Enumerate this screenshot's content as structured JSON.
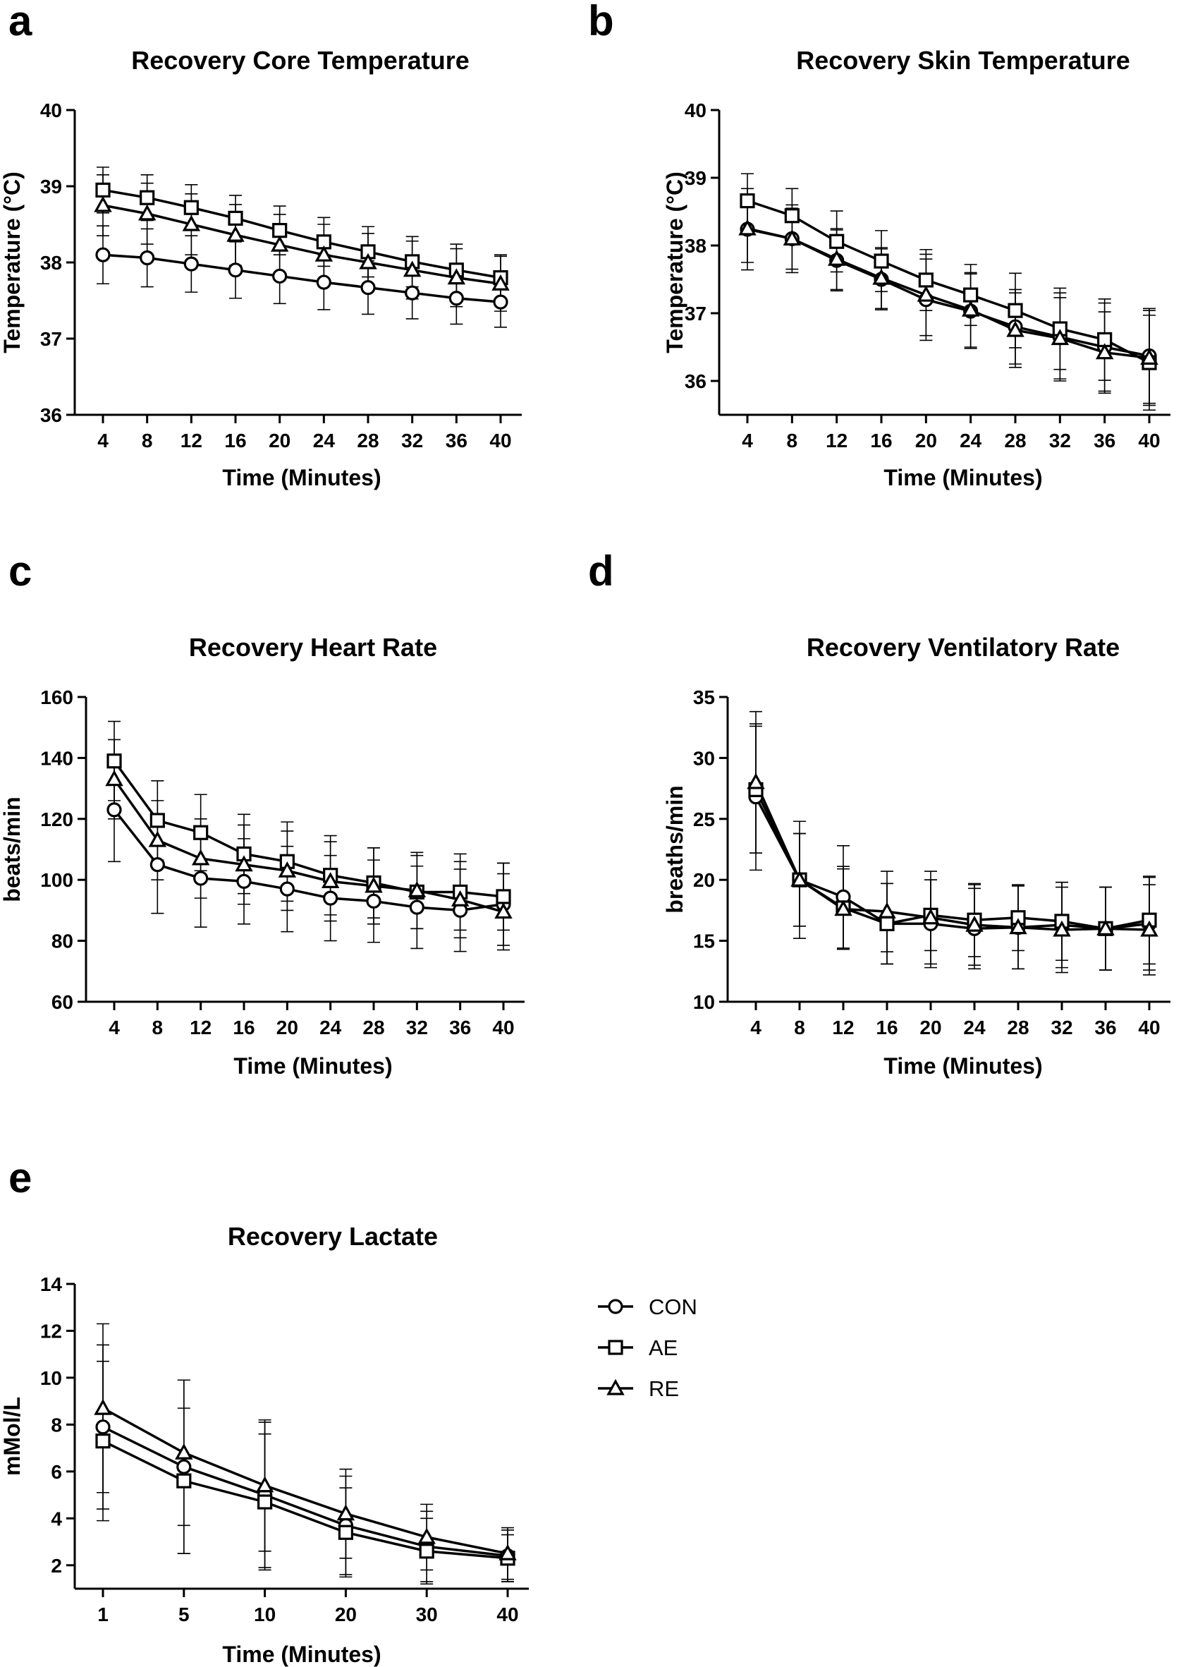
{
  "legend": [
    {
      "name": "CON",
      "marker": "circle-icon"
    },
    {
      "name": "AE",
      "marker": "square-icon"
    },
    {
      "name": "RE",
      "marker": "triangle-icon"
    }
  ],
  "chart_data": [
    {
      "letter": "a",
      "type": "line",
      "title": "Recovery Core Temperature",
      "xlabel": "Time (Minutes)",
      "ylabel": "Temperature (°C)",
      "categories": [
        "4",
        "8",
        "12",
        "16",
        "20",
        "24",
        "28",
        "32",
        "36",
        "40"
      ],
      "ylim": [
        36,
        40
      ],
      "yticks": [
        36,
        37,
        38,
        39,
        40
      ],
      "series": [
        {
          "name": "CON",
          "values": [
            38.1,
            38.06,
            37.98,
            37.9,
            37.82,
            37.74,
            37.67,
            37.6,
            37.53,
            37.48
          ],
          "errors": [
            0.38,
            0.38,
            0.37,
            0.37,
            0.36,
            0.36,
            0.35,
            0.34,
            0.34,
            0.33
          ]
        },
        {
          "name": "AE",
          "values": [
            38.95,
            38.85,
            38.72,
            38.58,
            38.42,
            38.27,
            38.14,
            38.01,
            37.9,
            37.8
          ],
          "errors": [
            0.3,
            0.3,
            0.3,
            0.3,
            0.32,
            0.32,
            0.33,
            0.33,
            0.34,
            0.3
          ]
        },
        {
          "name": "RE",
          "values": [
            38.75,
            38.64,
            38.5,
            38.36,
            38.23,
            38.1,
            38.0,
            37.9,
            37.8,
            37.72
          ],
          "errors": [
            0.4,
            0.4,
            0.4,
            0.4,
            0.4,
            0.4,
            0.38,
            0.38,
            0.38,
            0.36
          ]
        }
      ]
    },
    {
      "letter": "b",
      "type": "line",
      "title": "Recovery Skin Temperature",
      "xlabel": "Time (Minutes)",
      "ylabel": "Temperature (°C)",
      "categories": [
        "4",
        "8",
        "12",
        "16",
        "20",
        "24",
        "28",
        "32",
        "36",
        "40"
      ],
      "ylim": [
        35.5,
        40
      ],
      "yticks": [
        36,
        37,
        38,
        39,
        40
      ],
      "series": [
        {
          "name": "CON",
          "values": [
            38.24,
            38.1,
            37.78,
            37.5,
            37.2,
            37.03,
            36.8,
            36.65,
            36.5,
            36.37
          ],
          "errors": [
            0.6,
            0.5,
            0.45,
            0.45,
            0.6,
            0.55,
            0.55,
            0.65,
            0.65,
            0.7
          ]
        },
        {
          "name": "AE",
          "values": [
            38.66,
            38.44,
            38.06,
            37.77,
            37.49,
            37.27,
            37.04,
            36.77,
            36.61,
            36.27
          ],
          "errors": [
            0.4,
            0.4,
            0.45,
            0.45,
            0.45,
            0.45,
            0.55,
            0.6,
            0.6,
            0.7
          ]
        },
        {
          "name": "RE",
          "values": [
            38.25,
            38.1,
            37.8,
            37.52,
            37.27,
            37.05,
            36.75,
            36.63,
            36.42,
            36.34
          ],
          "errors": [
            0.5,
            0.45,
            0.45,
            0.45,
            0.6,
            0.55,
            0.55,
            0.6,
            0.6,
            0.7
          ]
        }
      ]
    },
    {
      "letter": "c",
      "type": "line",
      "title": "Recovery Heart Rate",
      "xlabel": "Time (Minutes)",
      "ylabel": "beats/min",
      "categories": [
        "4",
        "8",
        "12",
        "16",
        "20",
        "24",
        "28",
        "32",
        "36",
        "40"
      ],
      "ylim": [
        60,
        160
      ],
      "yticks": [
        60,
        80,
        100,
        120,
        140,
        160
      ],
      "series": [
        {
          "name": "CON",
          "values": [
            123,
            105,
            100.5,
            99.5,
            97,
            94,
            93,
            91,
            90,
            92
          ],
          "errors": [
            17,
            16,
            16,
            14,
            14,
            14,
            13.5,
            13.5,
            13.5,
            13.5
          ]
        },
        {
          "name": "AE",
          "values": [
            139,
            119.5,
            115.5,
            108.5,
            106,
            101.5,
            99,
            96,
            96,
            94.5
          ],
          "errors": [
            13,
            13,
            12.5,
            13,
            13,
            13,
            11.5,
            12,
            12.5,
            11
          ]
        },
        {
          "name": "RE",
          "values": [
            133,
            113,
            107,
            105,
            103,
            99.5,
            98,
            96.5,
            93.5,
            89.5
          ],
          "errors": [
            13,
            13,
            13,
            13,
            13,
            13,
            12.5,
            12.5,
            12.5,
            12.5
          ]
        }
      ]
    },
    {
      "letter": "d",
      "type": "line",
      "title": "Recovery Ventilatory Rate",
      "xlabel": "Time (Minutes)",
      "ylabel": "breaths/min",
      "categories": [
        "4",
        "8",
        "12",
        "16",
        "20",
        "24",
        "28",
        "32",
        "36",
        "40"
      ],
      "ylim": [
        10,
        35
      ],
      "yticks": [
        10,
        15,
        20,
        25,
        30,
        35
      ],
      "series": [
        {
          "name": "CON",
          "values": [
            26.8,
            20,
            18.6,
            16.4,
            16.4,
            16,
            16.1,
            16.3,
            16,
            16.4
          ],
          "errors": [
            6,
            3.8,
            4.2,
            3.3,
            3.6,
            3.3,
            3.4,
            3.5,
            3.4,
            3.8
          ]
        },
        {
          "name": "AE",
          "values": [
            27.4,
            20,
            17.7,
            16.4,
            17.1,
            16.7,
            16.9,
            16.6,
            16,
            16.7
          ],
          "errors": [
            5.2,
            3.8,
            3.4,
            3.3,
            2.9,
            3.0,
            2.7,
            3.2,
            3.4,
            3.6
          ]
        },
        {
          "name": "RE",
          "values": [
            28,
            20,
            17.6,
            17.4,
            16.9,
            16.3,
            16.1,
            15.9,
            16,
            15.9
          ],
          "errors": [
            5.8,
            4.8,
            3.3,
            3.3,
            3.8,
            3.3,
            3.4,
            3.5,
            3.4,
            3.7
          ]
        }
      ]
    },
    {
      "letter": "e",
      "type": "line",
      "title": "Recovery Lactate",
      "xlabel": "Time (Minutes)",
      "ylabel": "mMol/L",
      "categories": [
        "1",
        "5",
        "10",
        "20",
        "30",
        "40"
      ],
      "ylim": [
        1,
        14
      ],
      "yticks": [
        2,
        4,
        6,
        8,
        10,
        12,
        14
      ],
      "series": [
        {
          "name": "CON",
          "values": [
            7.9,
            6.2,
            5.0,
            3.7,
            2.8,
            2.4
          ],
          "errors": [
            3.5,
            3.7,
            3.1,
            2.1,
            1.5,
            1.1
          ]
        },
        {
          "name": "AE",
          "values": [
            7.3,
            5.6,
            4.7,
            3.4,
            2.6,
            2.3
          ],
          "errors": [
            3.4,
            3.1,
            2.9,
            1.9,
            1.4,
            1.0
          ]
        },
        {
          "name": "RE",
          "values": [
            8.7,
            6.8,
            5.4,
            4.2,
            3.2,
            2.5
          ],
          "errors": [
            3.6,
            3.1,
            2.8,
            1.9,
            1.4,
            1.1
          ]
        }
      ]
    }
  ]
}
